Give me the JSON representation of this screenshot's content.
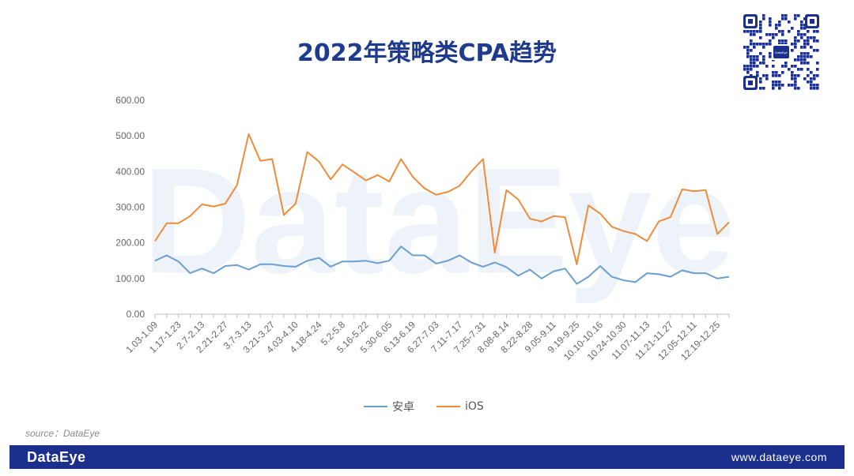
{
  "title": "2022年策略类CPA趋势",
  "source": "source：DataEye",
  "watermark": "DataEye",
  "footer": {
    "logo": "DataEye",
    "url": "www.dataeye.com"
  },
  "qr": {
    "center_label": "DataEye"
  },
  "colors": {
    "android": "#6a9fd0",
    "ios": "#ed8c3d",
    "title": "#1f3b8f",
    "footer_bg": "#1b2f8c"
  },
  "chart_data": {
    "type": "line",
    "title": "2022年策略类CPA趋势",
    "xlabel": "",
    "ylabel": "",
    "ylim": [
      0,
      600
    ],
    "y_ticks": [
      "0.00",
      "100.00",
      "200.00",
      "300.00",
      "400.00",
      "500.00",
      "600.00"
    ],
    "x_tick_labels": [
      "1.03-1.09",
      "1.17-1.23",
      "2.7-2.13",
      "2.21-2.27",
      "3.7-3.13",
      "3.21-3.27",
      "4.03-4.10",
      "4.18-4.24",
      "5.2-5.8",
      "5.16-5.22",
      "5.30-6.05",
      "6.13-6.19",
      "6.27-7.03",
      "7.11-7.17",
      "7.25-7.31",
      "8.08-8.14",
      "8.22-8.28",
      "9.05-9.11",
      "9.19-9.25",
      "10.10-10.16",
      "10.24-10.30",
      "11.07-11.13",
      "11.21-11.27",
      "12.05-12.11",
      "12.19-12.25"
    ],
    "legend": "bottom",
    "grid": false,
    "series": [
      {
        "name": "安卓",
        "values": [
          150,
          165,
          148,
          115,
          128,
          115,
          135,
          138,
          125,
          140,
          140,
          135,
          133,
          150,
          158,
          133,
          148,
          148,
          150,
          143,
          150,
          190,
          165,
          165,
          142,
          150,
          165,
          145,
          133,
          145,
          132,
          108,
          125,
          100,
          120,
          128,
          85,
          105,
          135,
          105,
          95,
          90,
          115,
          112,
          105,
          123,
          115,
          115,
          100,
          105
        ]
      },
      {
        "name": "iOS",
        "values": [
          205,
          255,
          255,
          275,
          308,
          302,
          310,
          362,
          505,
          430,
          435,
          278,
          310,
          455,
          428,
          378,
          420,
          398,
          375,
          390,
          372,
          435,
          385,
          353,
          335,
          343,
          360,
          400,
          435,
          172,
          348,
          322,
          268,
          260,
          275,
          272,
          140,
          305,
          282,
          245,
          233,
          225,
          205,
          260,
          272,
          350,
          345,
          348,
          225,
          258
        ]
      }
    ]
  }
}
